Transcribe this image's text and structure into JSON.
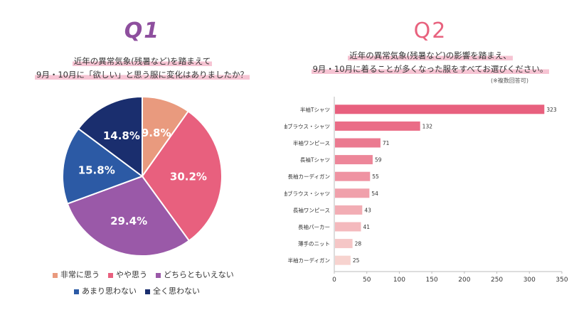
{
  "q1": {
    "title": "Q1",
    "question_line1": "近年の異常気象(残暑など)を踏まえて",
    "question_line2": "9月・10月に「欲しい」と思う服に変化はありましたか？",
    "legend_row1": [
      "非常に思う",
      "やや思う",
      "どちらともいえない"
    ],
    "legend_row2": [
      "あまり思わない",
      "全く思わない"
    ]
  },
  "q2": {
    "title": "Q2",
    "question_line1": "近年の異常気象(残暑など)の影響を踏まえ、",
    "question_line2": "9月・10月に着ることが多くなった服をすべてお選びください。",
    "note": "(※複数回答可)"
  },
  "chart_data": [
    {
      "type": "pie",
      "title": "Q1",
      "categories": [
        "非常に思う",
        "やや思う",
        "どちらともいえない",
        "あまり思わない",
        "全く思わない"
      ],
      "values": [
        9.8,
        30.2,
        29.4,
        15.8,
        14.8
      ],
      "labels": [
        "9.8%",
        "30.2%",
        "29.4%",
        "15.8%",
        "14.8%"
      ],
      "colors": [
        "#e99a7e",
        "#e8607e",
        "#9a59a8",
        "#2c5aa5",
        "#1a2e6e"
      ],
      "legend_position": "bottom"
    },
    {
      "type": "bar",
      "orientation": "horizontal",
      "title": "Q2",
      "categories": [
        "半袖Tシャツ",
        "半袖ブラウス・シャツ",
        "半袖ワンピース",
        "長袖Tシャツ",
        "長袖カーディガン",
        "長袖ブラウス・シャツ",
        "長袖ワンピース",
        "長袖パーカー",
        "薄手のニット",
        "半袖カーディガン"
      ],
      "values": [
        323,
        132,
        71,
        59,
        55,
        54,
        43,
        41,
        28,
        25
      ],
      "xlim": [
        0,
        350
      ],
      "xticks": [
        0,
        50,
        100,
        150,
        200,
        250,
        300,
        350
      ],
      "bar_color_start": "#e8607e",
      "bar_color_end": "#f7d3cf",
      "grid": false
    }
  ]
}
